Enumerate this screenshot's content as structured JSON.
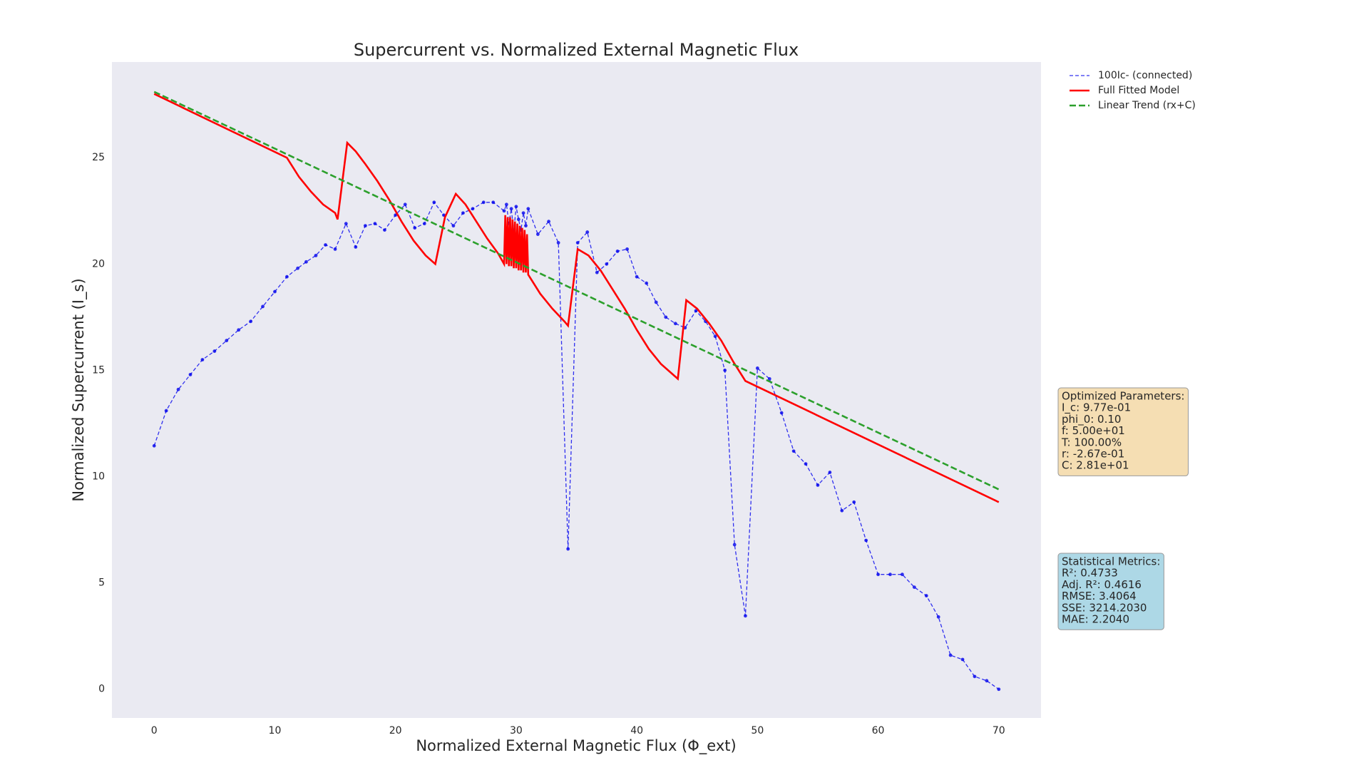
{
  "chart_data": {
    "type": "line",
    "title": "Supercurrent vs. Normalized External Magnetic Flux",
    "xlabel": "Normalized External Magnetic Flux (Φ_ext)",
    "ylabel": "Normalized Supercurrent (I_s)",
    "xlim": [
      -3.5,
      73.5
    ],
    "ylim": [
      -1.35,
      29.5
    ],
    "xticks": [
      0,
      10,
      20,
      30,
      40,
      50,
      60,
      70
    ],
    "yticks": [
      0,
      5,
      10,
      15,
      20,
      25
    ],
    "grid": false,
    "background": "#eaeaf2",
    "legend": "outside upper right",
    "series": [
      {
        "name": "100Ic- (connected)",
        "color": "#0000ee",
        "linestyle": "dashed",
        "marker": true,
        "x": [
          0,
          1,
          2,
          3,
          4,
          5,
          6,
          7,
          8,
          9,
          10,
          11,
          11.9,
          12.6,
          13.4,
          14.2,
          15.0,
          15.9,
          16.7,
          17.5,
          18.3,
          19.1,
          20,
          20.8,
          21.6,
          22.4,
          23.2,
          24,
          24.8,
          25.6,
          26.4,
          27.3,
          28.1,
          29,
          29.2,
          29.4,
          29.6,
          29.8,
          30.0,
          30.2,
          30.4,
          30.6,
          30.8,
          31.0,
          31.8,
          32.7,
          33.5,
          34.3,
          35.1,
          35.9,
          36.7,
          37.5,
          38.4,
          39.2,
          40,
          40.8,
          41.6,
          42.4,
          43.2,
          44,
          44.9,
          45.7,
          46.5,
          47.3,
          48.1,
          49,
          50,
          51,
          52,
          53,
          54,
          55,
          56,
          57,
          58,
          59,
          60,
          61,
          62,
          63,
          64,
          65,
          66,
          67,
          68,
          69,
          70
        ],
        "values": [
          11.45,
          13.1,
          14.1,
          14.8,
          15.5,
          15.9,
          16.4,
          16.9,
          17.3,
          18.0,
          18.7,
          19.4,
          19.8,
          20.1,
          20.4,
          20.9,
          20.7,
          21.9,
          20.8,
          21.8,
          21.9,
          21.6,
          22.3,
          22.8,
          21.7,
          21.9,
          22.9,
          22.3,
          21.8,
          22.4,
          22.6,
          22.9,
          22.9,
          22.5,
          22.8,
          21.9,
          22.6,
          21.5,
          22.7,
          22.1,
          21.6,
          22.4,
          21.8,
          22.6,
          21.4,
          22.0,
          21.0,
          6.6,
          21.0,
          21.5,
          19.6,
          20.0,
          20.6,
          20.7,
          19.4,
          19.1,
          18.2,
          17.5,
          17.2,
          17.0,
          17.8,
          17.3,
          16.6,
          15.0,
          6.8,
          3.45,
          15.1,
          14.6,
          13.0,
          11.2,
          10.6,
          9.6,
          10.2,
          8.4,
          8.8,
          7.0,
          5.4,
          5.4,
          5.4,
          4.8,
          4.4,
          3.4,
          1.6,
          1.4,
          0.6,
          0.4,
          0.0
        ]
      },
      {
        "name": "Full Fitted Model",
        "color": "#ff0000",
        "linestyle": "solid",
        "marker": false,
        "x": [
          0,
          11,
          12,
          13,
          14,
          15,
          15.2,
          16,
          16.7,
          17.5,
          18.5,
          19.5,
          20.5,
          21.5,
          22.5,
          23.3,
          24.1,
          25,
          25.8,
          26.7,
          27.6,
          28.5,
          29,
          29.1,
          29.2,
          29.3,
          29.4,
          29.5,
          29.6,
          29.7,
          29.8,
          29.9,
          30.0,
          30.1,
          30.2,
          30.3,
          30.4,
          30.5,
          30.6,
          30.7,
          30.8,
          30.9,
          31.0,
          32,
          33,
          34,
          34.3,
          35.1,
          36,
          37,
          38,
          39,
          40,
          41,
          42,
          43,
          43.4,
          44.1,
          45,
          46,
          47,
          48,
          49,
          70
        ],
        "values": [
          28.0,
          25.0,
          24.1,
          23.4,
          22.8,
          22.4,
          22.1,
          25.7,
          25.3,
          24.7,
          23.9,
          23.0,
          22.0,
          21.1,
          20.4,
          20.0,
          22.2,
          23.3,
          22.8,
          22.0,
          21.2,
          20.5,
          20.0,
          22.3,
          20.0,
          22.2,
          19.9,
          22.2,
          19.9,
          22.1,
          19.8,
          22.0,
          19.8,
          21.9,
          19.7,
          21.8,
          19.7,
          21.7,
          19.6,
          21.6,
          19.6,
          21.4,
          19.5,
          18.6,
          17.9,
          17.3,
          17.1,
          20.7,
          20.4,
          19.7,
          18.8,
          17.9,
          16.9,
          16.0,
          15.3,
          14.8,
          14.6,
          18.3,
          17.9,
          17.2,
          16.4,
          15.4,
          14.5,
          8.8
        ]
      },
      {
        "name": "Linear Trend (rx+C)",
        "color": "#2ca02c",
        "linestyle": "dashed",
        "marker": false,
        "x": [
          0,
          70
        ],
        "values": [
          28.1,
          9.4
        ]
      }
    ],
    "text_boxes": [
      {
        "color": "#f5deb3",
        "lines": [
          "Optimized Parameters:",
          "I_c: 9.77e-01",
          "phi_0: 0.10",
          "f: 5.00e+01",
          "T: 100.00%",
          "r: -2.67e-01",
          "C: 2.81e+01"
        ]
      },
      {
        "color": "#add8e6",
        "lines": [
          "Statistical Metrics:",
          "R²: 0.4733",
          "Adj. R²: 0.4616",
          "RMSE: 3.4064",
          "SSE: 3214.2030",
          "MAE: 2.2040"
        ]
      }
    ]
  }
}
